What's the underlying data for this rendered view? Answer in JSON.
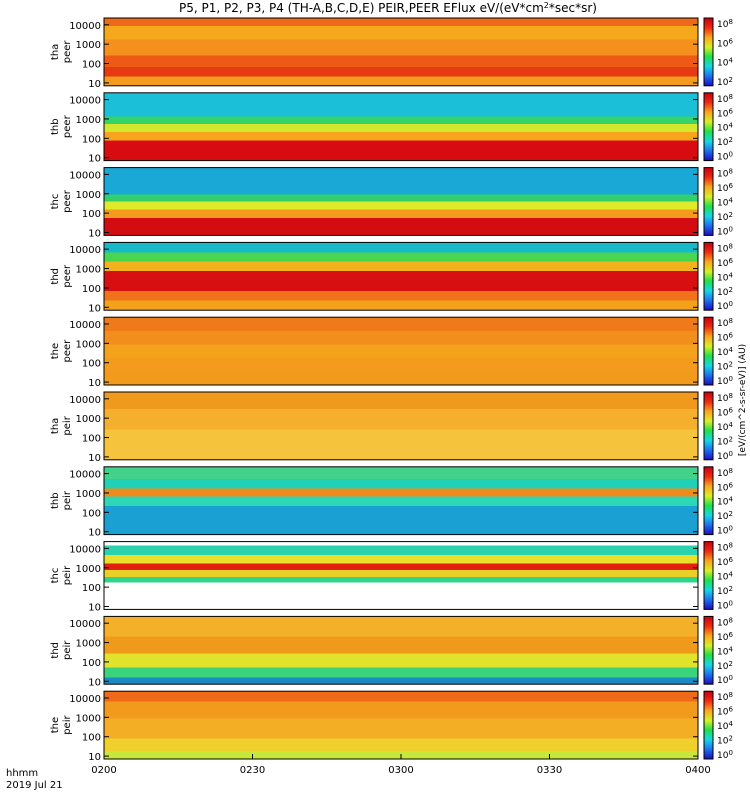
{
  "chart_data": {
    "type": "heatmap",
    "title": "P5, P1, P2, P3, P4 (TH-A,B,C,D,E) PEIR,PEER EFlux eV/(eV*cm",
    "title_sup": "2",
    "title_tail": "*sec*sr)",
    "x_header_label": "hhmm",
    "x_date_label": "2019 Jul 21",
    "xticks": [
      "0200",
      "0230",
      "0300",
      "0330",
      "0400"
    ],
    "xlim": [
      "02:00",
      "04:00"
    ],
    "colorbar_label": "[eV/(cm^2-s-sr-eV)] (AU)",
    "cmap": [
      "#1d0cbf",
      "#1f6ff0",
      "#12d8e6",
      "#1fe04a",
      "#d8ef26",
      "#f9a61e",
      "#ef2a10",
      "#c8000f"
    ],
    "panels": [
      {
        "name": "tha peer",
        "y1": "tha",
        "y2": "peer",
        "yticks": [
          "10000",
          "1000",
          "100",
          "10"
        ],
        "cbar_ticks": [
          "10^8",
          "10^6",
          "10^4",
          "10^2"
        ],
        "bands": [
          {
            "from": 0.0,
            "to": 0.12,
            "color": "#ef6a18"
          },
          {
            "from": 0.12,
            "to": 0.32,
            "color": "#f6a81c"
          },
          {
            "from": 0.32,
            "to": 0.55,
            "color": "#f4901b"
          },
          {
            "from": 0.55,
            "to": 0.72,
            "color": "#ee5a16"
          },
          {
            "from": 0.72,
            "to": 0.86,
            "color": "#e63a12"
          },
          {
            "from": 0.86,
            "to": 1.0,
            "color": "#f49a1c"
          }
        ]
      },
      {
        "name": "thb peer",
        "y1": "thb",
        "y2": "peer",
        "yticks": [
          "10000",
          "1000",
          "100",
          "10"
        ],
        "cbar_ticks": [
          "10^8",
          "10^6",
          "10^4",
          "10^2",
          "10^0"
        ],
        "bands": [
          {
            "from": 0.0,
            "to": 0.35,
            "color": "#1bbfd8"
          },
          {
            "from": 0.35,
            "to": 0.46,
            "color": "#36d26a"
          },
          {
            "from": 0.46,
            "to": 0.58,
            "color": "#d3e82c"
          },
          {
            "from": 0.58,
            "to": 0.7,
            "color": "#f7a51d"
          },
          {
            "from": 0.7,
            "to": 1.0,
            "color": "#d80c10"
          }
        ]
      },
      {
        "name": "thc peer",
        "y1": "thc",
        "y2": "peer",
        "yticks": [
          "10000",
          "1000",
          "100",
          "10"
        ],
        "cbar_ticks": [
          "10^8",
          "10^6",
          "10^4",
          "10^2",
          "10^0"
        ],
        "bands": [
          {
            "from": 0.0,
            "to": 0.4,
            "color": "#1aa8d6"
          },
          {
            "from": 0.4,
            "to": 0.5,
            "color": "#33cf6d"
          },
          {
            "from": 0.5,
            "to": 0.62,
            "color": "#e0ea28"
          },
          {
            "from": 0.62,
            "to": 0.74,
            "color": "#f49a1c"
          },
          {
            "from": 0.74,
            "to": 1.0,
            "color": "#d20c10"
          }
        ]
      },
      {
        "name": "thd peer",
        "y1": "thd",
        "y2": "peer",
        "yticks": [
          "10000",
          "1000",
          "100",
          "10"
        ],
        "cbar_ticks": [
          "10^8",
          "10^6",
          "10^4",
          "10^2",
          "10^0"
        ],
        "bands": [
          {
            "from": 0.0,
            "to": 0.15,
            "color": "#17b9c9"
          },
          {
            "from": 0.15,
            "to": 0.28,
            "color": "#48d64e"
          },
          {
            "from": 0.28,
            "to": 0.42,
            "color": "#f5b01d"
          },
          {
            "from": 0.42,
            "to": 0.72,
            "color": "#d80f10"
          },
          {
            "from": 0.72,
            "to": 0.86,
            "color": "#f0721a"
          },
          {
            "from": 0.86,
            "to": 1.0,
            "color": "#f4a21c"
          }
        ]
      },
      {
        "name": "the peer",
        "y1": "the",
        "y2": "peer",
        "yticks": [
          "10000",
          "1000",
          "100",
          "10"
        ],
        "cbar_ticks": [
          "10^8",
          "10^6",
          "10^4",
          "10^2",
          "10^0"
        ],
        "bands": [
          {
            "from": 0.0,
            "to": 0.2,
            "color": "#ef7a1a"
          },
          {
            "from": 0.2,
            "to": 0.4,
            "color": "#f28e1b"
          },
          {
            "from": 0.4,
            "to": 0.6,
            "color": "#f4a11c"
          },
          {
            "from": 0.6,
            "to": 0.8,
            "color": "#f49a1c"
          },
          {
            "from": 0.8,
            "to": 1.0,
            "color": "#f29a1c"
          }
        ]
      },
      {
        "name": "tha peir",
        "y1": "tha",
        "y2": "peir",
        "yticks": [
          "10000",
          "1000",
          "100",
          "10"
        ],
        "cbar_ticks": [
          "10^8",
          "10^6",
          "10^4",
          "10^2",
          "10^0"
        ],
        "bands": [
          {
            "from": 0.0,
            "to": 0.25,
            "color": "#f09a1d"
          },
          {
            "from": 0.25,
            "to": 0.55,
            "color": "#f4b02c"
          },
          {
            "from": 0.55,
            "to": 1.0,
            "color": "#f6c33c"
          }
        ]
      },
      {
        "name": "thb peir",
        "y1": "thb",
        "y2": "peir",
        "yticks": [
          "10000",
          "1000",
          "100",
          "10"
        ],
        "cbar_ticks": [
          "10^8",
          "10^6",
          "10^4",
          "10^2",
          "10^0"
        ],
        "bands": [
          {
            "from": 0.0,
            "to": 0.18,
            "color": "#42d28a"
          },
          {
            "from": 0.18,
            "to": 0.32,
            "color": "#1fd1b6"
          },
          {
            "from": 0.32,
            "to": 0.44,
            "color": "#f08a1b"
          },
          {
            "from": 0.44,
            "to": 0.58,
            "color": "#2bd7b4"
          },
          {
            "from": 0.58,
            "to": 1.0,
            "color": "#1aa0d2"
          }
        ]
      },
      {
        "name": "thc peir",
        "y1": "thc",
        "y2": "peir",
        "yticks": [
          "10000",
          "1000",
          "100",
          "10"
        ],
        "cbar_ticks": [
          "10^8",
          "10^6",
          "10^4",
          "10^2",
          "10^0"
        ],
        "bands": [
          {
            "from": 0.0,
            "to": 0.06,
            "color": "#ffffff"
          },
          {
            "from": 0.06,
            "to": 0.2,
            "color": "#2ad3ae"
          },
          {
            "from": 0.2,
            "to": 0.32,
            "color": "#e8e02a"
          },
          {
            "from": 0.32,
            "to": 0.42,
            "color": "#e21f10"
          },
          {
            "from": 0.42,
            "to": 0.52,
            "color": "#e8d028"
          },
          {
            "from": 0.52,
            "to": 0.6,
            "color": "#30d58c"
          },
          {
            "from": 0.6,
            "to": 1.0,
            "color": "#ffffff"
          }
        ]
      },
      {
        "name": "thd peir",
        "y1": "thd",
        "y2": "peir",
        "yticks": [
          "10000",
          "1000",
          "100",
          "10"
        ],
        "cbar_ticks": [
          "10^8",
          "10^6",
          "10^4",
          "10^2",
          "10^0"
        ],
        "bands": [
          {
            "from": 0.0,
            "to": 0.3,
            "color": "#f3b12a"
          },
          {
            "from": 0.3,
            "to": 0.55,
            "color": "#f09a1c"
          },
          {
            "from": 0.55,
            "to": 0.75,
            "color": "#e0e22c"
          },
          {
            "from": 0.75,
            "to": 0.9,
            "color": "#3bd27c"
          },
          {
            "from": 0.9,
            "to": 1.0,
            "color": "#1c8bc4"
          }
        ]
      },
      {
        "name": "the peir",
        "y1": "the",
        "y2": "peir",
        "yticks": [
          "10000",
          "1000",
          "100",
          "10"
        ],
        "cbar_ticks": [
          "10^8",
          "10^6",
          "10^4",
          "10^2",
          "10^0"
        ],
        "bands": [
          {
            "from": 0.0,
            "to": 0.15,
            "color": "#ee6a18"
          },
          {
            "from": 0.15,
            "to": 0.4,
            "color": "#f29a1c"
          },
          {
            "from": 0.4,
            "to": 0.7,
            "color": "#f4ae26"
          },
          {
            "from": 0.7,
            "to": 0.88,
            "color": "#f0d02c"
          },
          {
            "from": 0.88,
            "to": 1.0,
            "color": "#c8e73a"
          }
        ]
      }
    ]
  }
}
